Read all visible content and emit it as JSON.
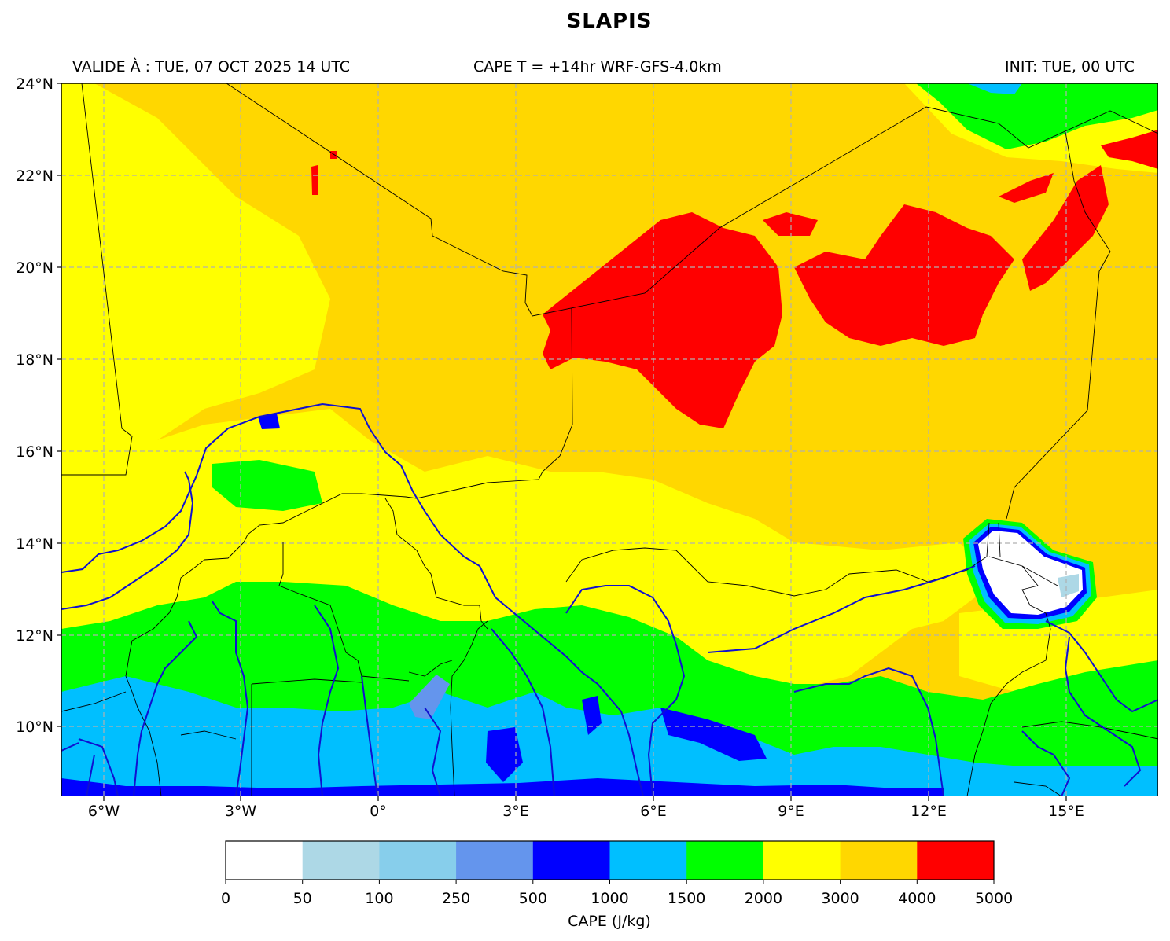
{
  "title": "SLAPIS",
  "subtitle": {
    "valid": "VALIDE À : TUE, 07 OCT 2025 14 UTC",
    "product": "CAPE T = +14hr WRF-GFS-4.0km",
    "init": "INIT: TUE, 00 UTC"
  },
  "map": {
    "lon_range": [
      -7,
      17
    ],
    "lat_range": [
      8.5,
      24
    ],
    "lat_ticks": [
      "24°N",
      "22°N",
      "20°N",
      "18°N",
      "16°N",
      "14°N",
      "12°N",
      "10°N"
    ],
    "lon_ticks": [
      "6°W",
      "3°W",
      "0°",
      "3°E",
      "6°E",
      "9°E",
      "12°E",
      "15°E"
    ],
    "grid": true,
    "colors": {
      "border": "#000000",
      "river": "#1010d0",
      "grid": "#b0b0b0"
    }
  },
  "colorbar": {
    "label": "CAPE (J/kg)",
    "ticks": [
      "0",
      "50",
      "100",
      "250",
      "500",
      "1000",
      "1500",
      "2000",
      "3000",
      "4000",
      "5000"
    ],
    "colors": [
      "#ffffff",
      "#add8e6",
      "#87ceeb",
      "#6495ed",
      "#0000ff",
      "#00bfff",
      "#00ff00",
      "#ffff00",
      "#ffd700",
      "#ff0000"
    ]
  }
}
